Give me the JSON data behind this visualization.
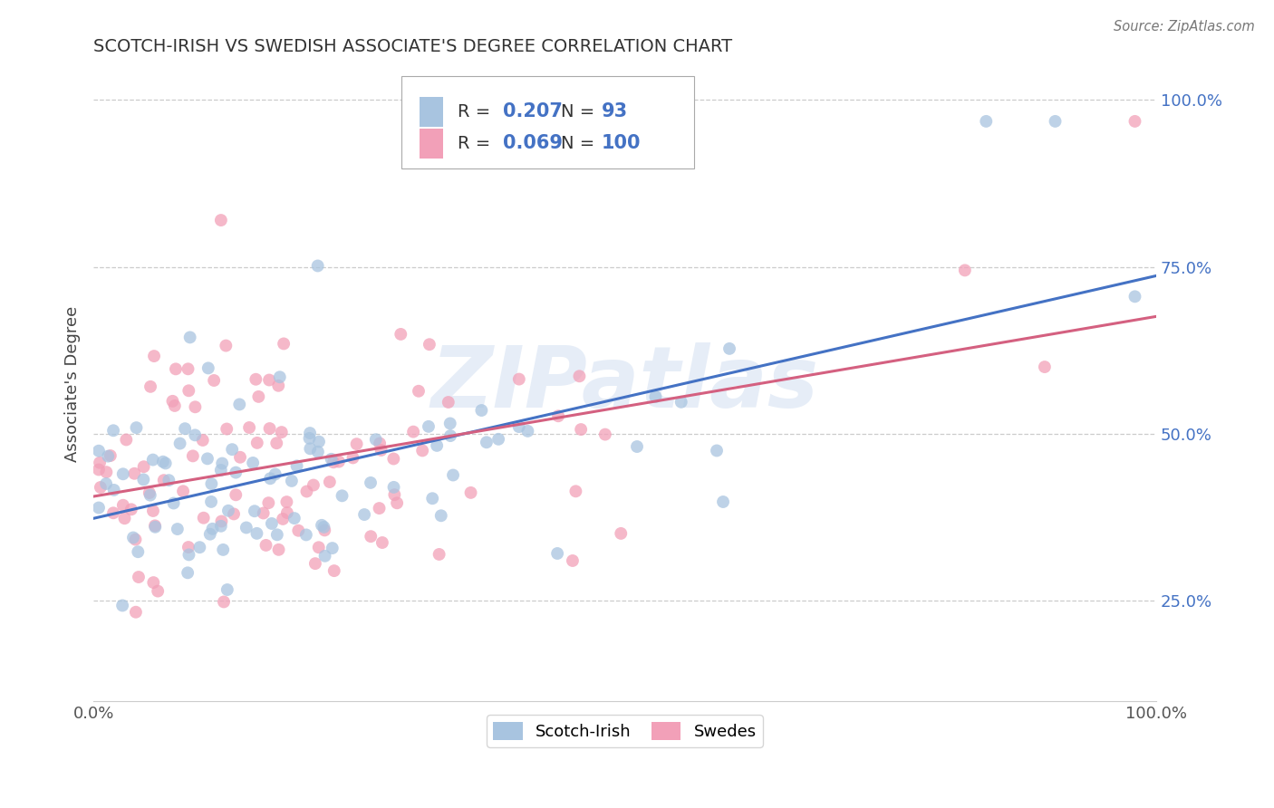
{
  "title": "SCOTCH-IRISH VS SWEDISH ASSOCIATE'S DEGREE CORRELATION CHART",
  "source": "Source: ZipAtlas.com",
  "ylabel": "Associate's Degree",
  "xlim": [
    0.0,
    1.0
  ],
  "ylim": [
    0.1,
    1.05
  ],
  "yticks": [
    0.25,
    0.5,
    0.75,
    1.0
  ],
  "ytick_labels": [
    "25.0%",
    "50.0%",
    "75.0%",
    "100.0%"
  ],
  "xticks": [
    0.0,
    1.0
  ],
  "xtick_labels": [
    "0.0%",
    "100.0%"
  ],
  "scotch_irish_R": 0.207,
  "scotch_irish_N": 93,
  "swedes_R": 0.069,
  "swedes_N": 100,
  "scotch_irish_color": "#a8c4e0",
  "swedes_color": "#f2a0b8",
  "scotch_irish_line_color": "#4472c4",
  "swedes_line_color": "#d46080",
  "watermark": "ZIPatlas",
  "background_color": "#ffffff",
  "grid_color": "#cccccc",
  "title_color": "#333333",
  "tick_label_color": "#4472c4",
  "legend_text_color": "#4472c4",
  "marker_size": 100
}
